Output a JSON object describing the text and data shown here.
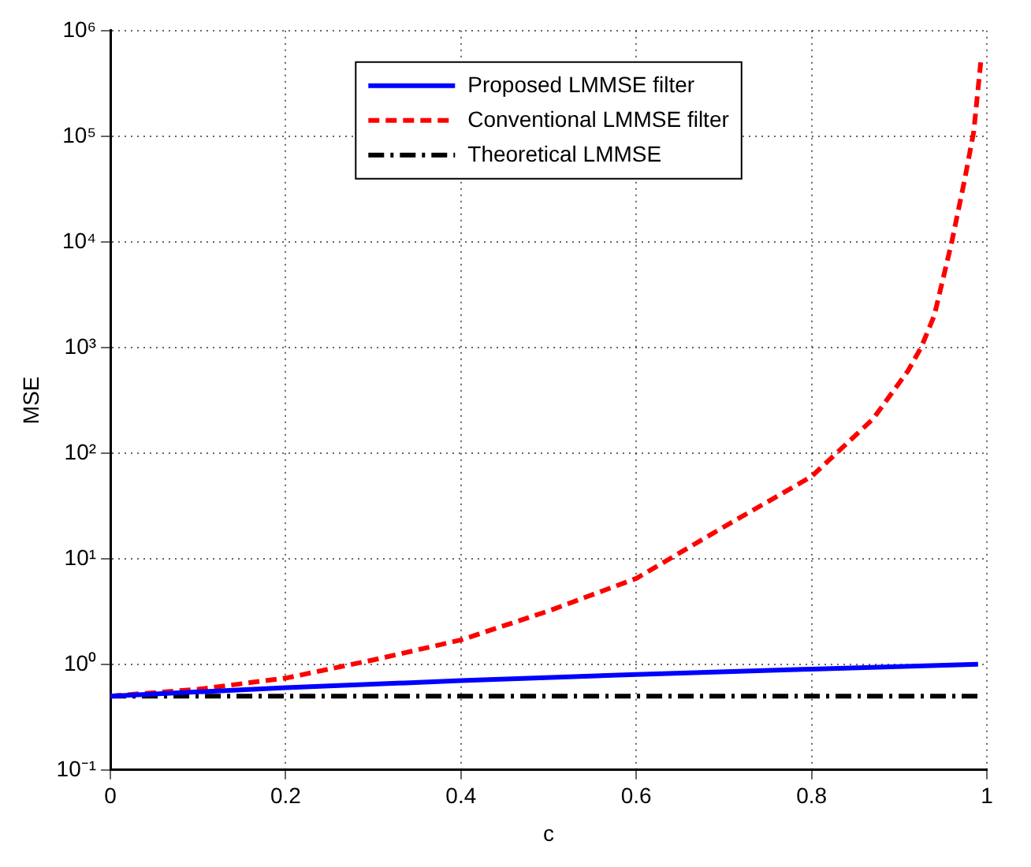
{
  "chart_data": {
    "type": "line",
    "xlabel": "c",
    "ylabel": "MSE",
    "log": "y",
    "grid": true,
    "legend": "top",
    "marker": "none",
    "xlim": [
      0,
      1
    ],
    "xticks": [
      0,
      0.2,
      0.4,
      0.6,
      0.8,
      1
    ],
    "ylim": [
      0.1,
      1000000
    ],
    "yticks": [
      {
        "value": 0.1,
        "label": "10⁻¹"
      },
      {
        "value": 1,
        "label": "10⁰"
      },
      {
        "value": 10,
        "label": "10¹"
      },
      {
        "value": 100,
        "label": "10²"
      },
      {
        "value": 1000,
        "label": "10³"
      },
      {
        "value": 10000,
        "label": "10⁴"
      },
      {
        "value": 100000,
        "label": "10⁵"
      },
      {
        "value": 1000000,
        "label": "10⁶"
      }
    ],
    "series": [
      {
        "name": "Proposed LMMSE filter",
        "color": "#0000ff",
        "line_style": "solid",
        "x": [
          0,
          0.2,
          0.4,
          0.6,
          0.8,
          0.99
        ],
        "values": [
          0.5,
          0.6,
          0.7,
          0.8,
          0.9,
          1.0
        ]
      },
      {
        "name": "Conventional LMMSE filter",
        "color": "#ff0000",
        "line_style": "dashed",
        "x": [
          0,
          0.1,
          0.2,
          0.3,
          0.4,
          0.5,
          0.6,
          0.7,
          0.8,
          0.87,
          0.91,
          0.925,
          0.94,
          0.96,
          0.975,
          0.985,
          0.993
        ],
        "values": [
          0.5,
          0.58,
          0.74,
          1.1,
          1.7,
          3.2,
          6.5,
          20,
          60,
          210,
          600,
          1000,
          2000,
          10000,
          40000,
          110000,
          500000
        ]
      },
      {
        "name": "Theoretical LMMSE",
        "color": "#000000",
        "line_style": "dashdot",
        "x": [
          0,
          0.99
        ],
        "values": [
          0.5,
          0.5
        ]
      }
    ]
  }
}
